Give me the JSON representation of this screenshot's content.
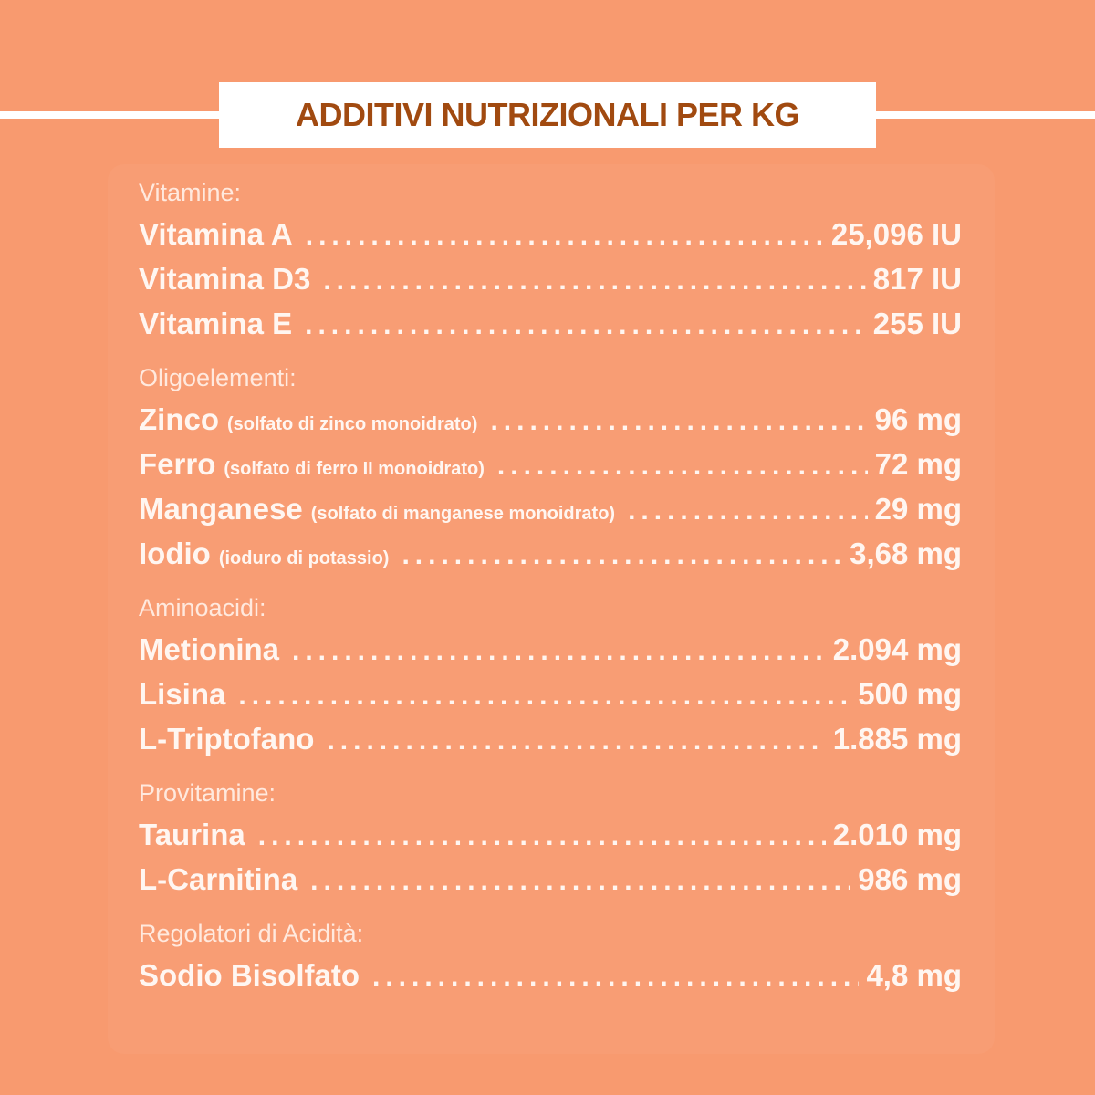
{
  "title": "ADDITIVI NUTRIZIONALI PER KG",
  "sections": [
    {
      "heading": "Vitamine:",
      "items": [
        {
          "name": "Vitamina A",
          "note": "",
          "value": "25,096 IU"
        },
        {
          "name": "Vitamina D3",
          "note": "",
          "value": "817 IU"
        },
        {
          "name": "Vitamina E",
          "note": "",
          "value": "255 IU"
        }
      ]
    },
    {
      "heading": "Oligoelementi:",
      "items": [
        {
          "name": "Zinco",
          "note": "(solfato di zinco monoidrato)",
          "value": "96 mg"
        },
        {
          "name": "Ferro",
          "note": "(solfato di ferro II monoidrato)",
          "value": "72 mg"
        },
        {
          "name": "Manganese",
          "note": "(solfato di manganese monoidrato)",
          "value": "29 mg"
        },
        {
          "name": "Iodio",
          "note": "(ioduro di potassio)",
          "value": "3,68 mg"
        }
      ]
    },
    {
      "heading": "Aminoacidi:",
      "items": [
        {
          "name": "Metionina",
          "note": "",
          "value": "2.094 mg"
        },
        {
          "name": "Lisina",
          "note": "",
          "value": "500 mg"
        },
        {
          "name": "L-Triptofano",
          "note": "",
          "value": "1.885 mg"
        }
      ]
    },
    {
      "heading": "Provitamine:",
      "items": [
        {
          "name": "Taurina",
          "note": "",
          "value": "2.010 mg"
        },
        {
          "name": "L-Carnitina",
          "note": "",
          "value": "986 mg"
        }
      ]
    },
    {
      "heading": "Regolatori di Acidità:",
      "items": [
        {
          "name": "Sodio Bisolfato",
          "note": "",
          "value": "4,8 mg"
        }
      ]
    }
  ]
}
